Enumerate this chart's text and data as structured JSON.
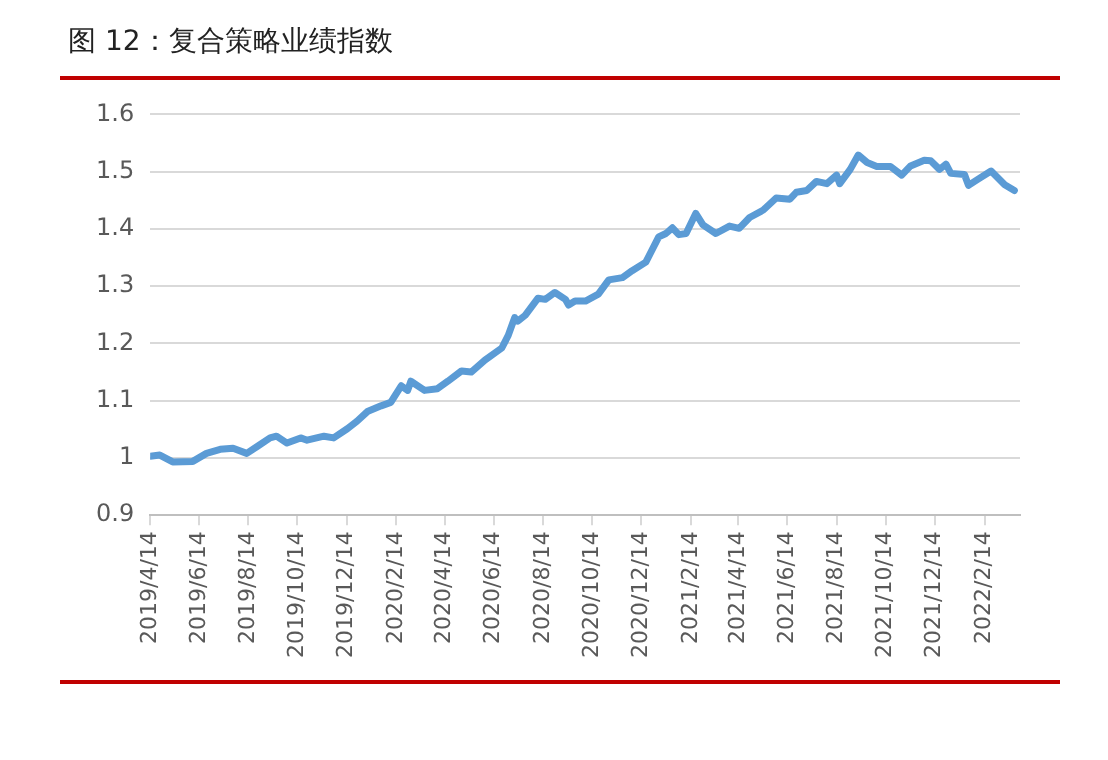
{
  "chart_data": {
    "type": "line",
    "title": "图 12：复合策略业绩指数",
    "x": [
      "2019-04-14",
      "2019-04-26",
      "2019-05-12",
      "2019-06-06",
      "2019-06-23",
      "2019-07-10",
      "2019-07-26",
      "2019-08-12",
      "2019-08-25",
      "2019-09-10",
      "2019-09-18",
      "2019-10-01",
      "2019-10-18",
      "2019-10-26",
      "2019-11-16",
      "2019-11-28",
      "2019-12-15",
      "2019-12-27",
      "2020-01-09",
      "2020-01-26",
      "2020-02-07",
      "2020-02-20",
      "2020-02-28",
      "2020-03-03",
      "2020-03-20",
      "2020-04-05",
      "2020-04-18",
      "2020-05-05",
      "2020-05-17",
      "2020-06-03",
      "2020-06-24",
      "2020-07-02",
      "2020-07-10",
      "2020-07-14",
      "2020-07-23",
      "2020-08-08",
      "2020-08-17",
      "2020-08-29",
      "2020-09-11",
      "2020-09-15",
      "2020-09-23",
      "2020-10-06",
      "2020-10-22",
      "2020-11-04",
      "2020-11-21",
      "2020-12-03",
      "2020-12-20",
      "2021-01-05",
      "2021-01-14",
      "2021-01-22",
      "2021-01-30",
      "2021-02-08",
      "2021-02-20",
      "2021-03-01",
      "2021-03-17",
      "2021-04-03",
      "2021-04-15",
      "2021-04-28",
      "2021-05-15",
      "2021-05-31",
      "2021-06-17",
      "2021-06-25",
      "2021-07-08",
      "2021-07-20",
      "2021-08-02",
      "2021-08-14",
      "2021-08-18",
      "2021-08-31",
      "2021-09-10",
      "2021-09-21",
      "2021-10-03",
      "2021-10-20",
      "2021-11-03",
      "2021-11-14",
      "2021-12-01",
      "2021-12-09",
      "2021-12-20",
      "2021-12-28",
      "2022-01-03",
      "2022-01-20",
      "2022-01-25",
      "2022-02-05",
      "2022-02-22",
      "2022-03-11",
      "2022-03-23"
    ],
    "series": [
      {
        "color": "#5b9bd5",
        "values": [
          1.003,
          1.005,
          0.993,
          0.994,
          1.008,
          1.015,
          1.017,
          1.008,
          1.02,
          1.035,
          1.038,
          1.026,
          1.035,
          1.031,
          1.038,
          1.035,
          1.051,
          1.064,
          1.081,
          1.091,
          1.097,
          1.126,
          1.118,
          1.134,
          1.118,
          1.121,
          1.134,
          1.152,
          1.15,
          1.171,
          1.192,
          1.214,
          1.245,
          1.239,
          1.249,
          1.279,
          1.277,
          1.289,
          1.277,
          1.267,
          1.274,
          1.274,
          1.286,
          1.311,
          1.315,
          1.327,
          1.342,
          1.386,
          1.392,
          1.402,
          1.39,
          1.392,
          1.427,
          1.407,
          1.392,
          1.405,
          1.401,
          1.42,
          1.433,
          1.454,
          1.452,
          1.464,
          1.467,
          1.483,
          1.479,
          1.494,
          1.479,
          1.504,
          1.529,
          1.516,
          1.509,
          1.509,
          1.494,
          1.51,
          1.52,
          1.519,
          1.504,
          1.513,
          1.497,
          1.495,
          1.476,
          1.486,
          1.501,
          1.477,
          1.467
        ]
      }
    ],
    "xlim": [
      "2019-04-14",
      "2022-03-30"
    ],
    "xticks": [
      {
        "value": "2019-04-14",
        "label": "2019/4/14"
      },
      {
        "value": "2019-06-14",
        "label": "2019/6/14"
      },
      {
        "value": "2019-08-14",
        "label": "2019/8/14"
      },
      {
        "value": "2019-10-14",
        "label": "2019/10/14"
      },
      {
        "value": "2019-12-14",
        "label": "2019/12/14"
      },
      {
        "value": "2020-02-14",
        "label": "2020/2/14"
      },
      {
        "value": "2020-04-14",
        "label": "2020/4/14"
      },
      {
        "value": "2020-06-14",
        "label": "2020/6/14"
      },
      {
        "value": "2020-08-14",
        "label": "2020/8/14"
      },
      {
        "value": "2020-10-14",
        "label": "2020/10/14"
      },
      {
        "value": "2020-12-14",
        "label": "2020/12/14"
      },
      {
        "value": "2021-02-14",
        "label": "2021/2/14"
      },
      {
        "value": "2021-04-14",
        "label": "2021/4/14"
      },
      {
        "value": "2021-06-14",
        "label": "2021/6/14"
      },
      {
        "value": "2021-08-14",
        "label": "2021/8/14"
      },
      {
        "value": "2021-10-14",
        "label": "2021/10/14"
      },
      {
        "value": "2021-12-14",
        "label": "2021/12/14"
      },
      {
        "value": "2022-02-14",
        "label": "2022/2/14"
      }
    ],
    "ylim": [
      0.9,
      1.6
    ],
    "yticks": [
      0.9,
      1,
      1.1,
      1.2,
      1.3,
      1.4,
      1.5,
      1.6
    ],
    "grid": "y",
    "legend": false,
    "marker": "none",
    "line_style": "solid"
  }
}
